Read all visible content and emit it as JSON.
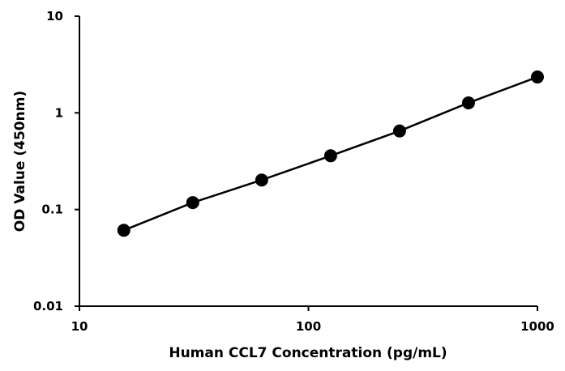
{
  "chart_data": {
    "type": "scatter",
    "title": "",
    "xlabel": "Human CCL7 Concentration  (pg/mL)",
    "ylabel": "OD Value (450nm)",
    "xscale": "log",
    "yscale": "log",
    "xlim": [
      10,
      1000
    ],
    "ylim": [
      0.01,
      10
    ],
    "x_ticks": [
      {
        "value": 10,
        "label": "10"
      },
      {
        "value": 100,
        "label": "100"
      },
      {
        "value": 1000,
        "label": "1000"
      }
    ],
    "y_ticks": [
      {
        "value": 0.01,
        "label": "0.01"
      },
      {
        "value": 0.1,
        "label": "0.1"
      },
      {
        "value": 1,
        "label": "1"
      },
      {
        "value": 10,
        "label": "10"
      }
    ],
    "grid": false,
    "legend": "none",
    "line": true,
    "marker_color": "#000000",
    "line_color": "#000000",
    "series": [
      {
        "x": [
          15.625,
          31.25,
          62.5,
          125,
          250,
          500,
          1000
        ],
        "y": [
          0.061,
          0.118,
          0.202,
          0.36,
          0.65,
          1.27,
          2.35
        ]
      }
    ]
  }
}
